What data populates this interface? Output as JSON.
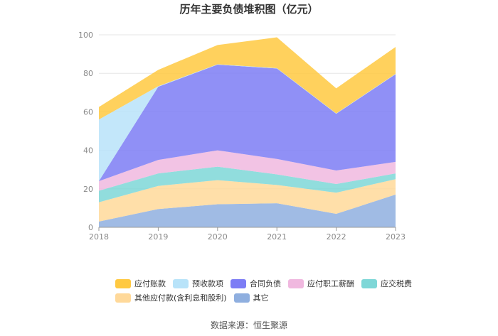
{
  "chart_data": {
    "type": "area",
    "title": "历年主要负债堆积图（亿元）",
    "x": [
      "2018",
      "2019",
      "2020",
      "2021",
      "2022",
      "2023"
    ],
    "ylim": [
      0,
      100
    ],
    "yticks": [
      "0",
      "20",
      "40",
      "60",
      "80",
      "100"
    ],
    "grid": true,
    "legend_position": "bottom",
    "stacked": true,
    "series": [
      {
        "name": "应付账款",
        "color": "#FFC941",
        "values": [
          6.5,
          8.5,
          10,
          16,
          13,
          14
        ]
      },
      {
        "name": "预收款项",
        "color": "#B8E3F9",
        "values": [
          32,
          0.3,
          0.2,
          0.2,
          0.2,
          0.2
        ]
      },
      {
        "name": "合同负债",
        "color": "#7D7DF5",
        "values": [
          0,
          38,
          44.5,
          47,
          29.5,
          45.5
        ]
      },
      {
        "name": "应付职工薪酬",
        "color": "#F0B8DF",
        "values": [
          5,
          7,
          8.5,
          8,
          7,
          6
        ]
      },
      {
        "name": "应交税费",
        "color": "#7ED7D7",
        "values": [
          6,
          6.5,
          7,
          5.5,
          4.5,
          3
        ]
      },
      {
        "name": "其他应付款(含利息和股利)",
        "color": "#FFD99A",
        "values": [
          10,
          12,
          12.5,
          9.5,
          11,
          8
        ]
      },
      {
        "name": "其它",
        "color": "#8FAFDF",
        "values": [
          3,
          9.5,
          12,
          12.5,
          7,
          17
        ]
      }
    ]
  },
  "source_text": "数据来源：恒生聚源"
}
